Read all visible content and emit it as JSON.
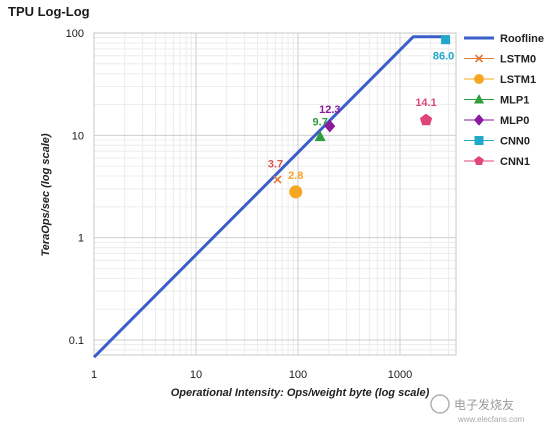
{
  "chart_data": {
    "type": "scatter",
    "title": "TPU Log-Log",
    "xlabel": "Operational Intensity: Ops/weight byte (log scale)",
    "ylabel": "TeraOps/sec (log scale)",
    "xscale": "log",
    "yscale": "log",
    "xlim": [
      1,
      3000
    ],
    "ylim": [
      0.07,
      100
    ],
    "x_ticks": [
      {
        "value": 1,
        "label": "1"
      },
      {
        "value": 10,
        "label": "10"
      },
      {
        "value": 100,
        "label": "100"
      },
      {
        "value": 1000,
        "label": "1000"
      }
    ],
    "y_ticks": [
      {
        "value": 0.1,
        "label": "0.1"
      },
      {
        "value": 1,
        "label": "1"
      },
      {
        "value": 10,
        "label": "10"
      },
      {
        "value": 100,
        "label": "100"
      }
    ],
    "grid": true,
    "legend_position": "right",
    "roofline": {
      "name": "Roofline",
      "color": "#3a5fc8",
      "points": [
        [
          1,
          0.068
        ],
        [
          1350,
          92
        ],
        [
          3000,
          92
        ]
      ]
    },
    "series": [
      {
        "name": "LSTM0",
        "x": 63,
        "y": 3.7,
        "label": "3.7",
        "marker": "x",
        "color": "#e07b39",
        "label_color": "#d9534f"
      },
      {
        "name": "LSTM1",
        "x": 95,
        "y": 2.8,
        "label": "2.8",
        "marker": "circle",
        "color": "#f5a623",
        "label_color": "#f5a623"
      },
      {
        "name": "MLP1",
        "x": 165,
        "y": 9.7,
        "label": "9.7",
        "marker": "triangle",
        "color": "#2e9e3e",
        "label_color": "#2e9e3e"
      },
      {
        "name": "MLP0",
        "x": 205,
        "y": 12.3,
        "label": "12.3",
        "marker": "diamond",
        "color": "#8b1a9e",
        "label_color": "#8b1a9e"
      },
      {
        "name": "CNN0",
        "x": 2800,
        "y": 86.0,
        "label": "86.0",
        "marker": "square",
        "color": "#1fa8c9",
        "label_color": "#1fa8c9"
      },
      {
        "name": "CNN1",
        "x": 1800,
        "y": 14.1,
        "label": "14.1",
        "marker": "pentagon",
        "color": "#e0457b",
        "label_color": "#e0457b"
      }
    ]
  },
  "watermark": {
    "text": "电子发烧友",
    "url_text": "www.elecfans.com"
  }
}
